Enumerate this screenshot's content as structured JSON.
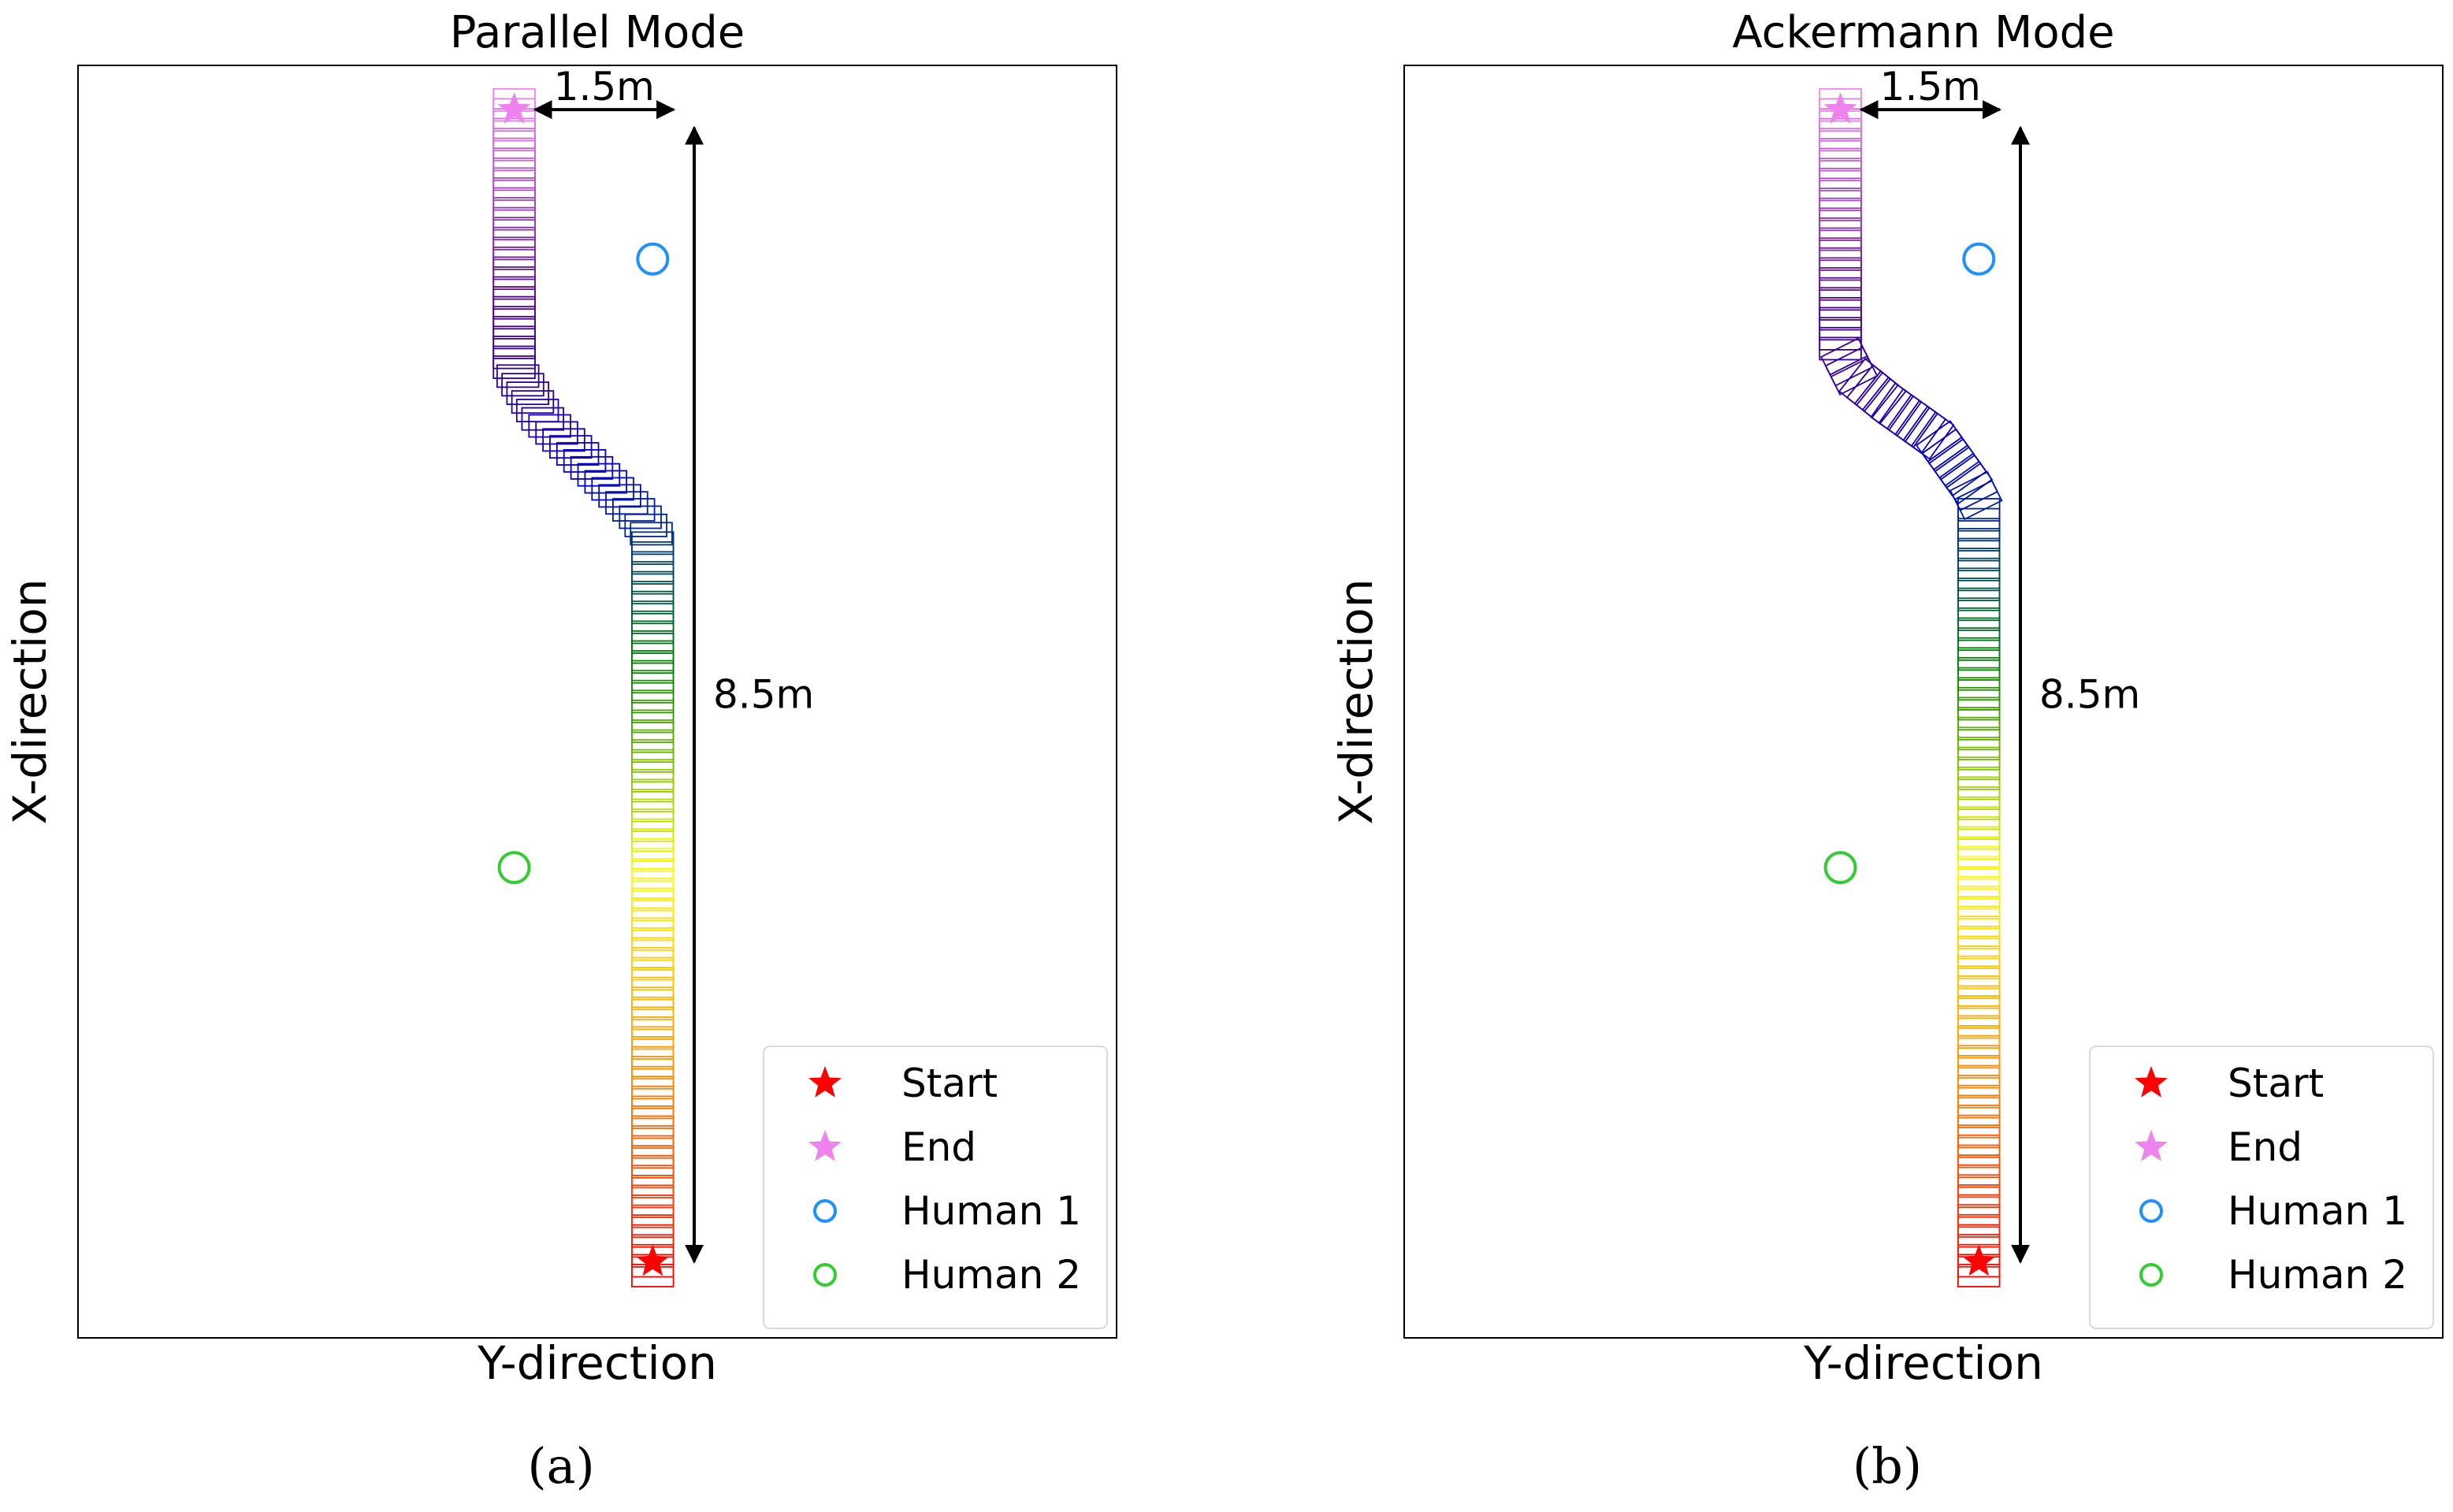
{
  "chart_data": [
    {
      "type": "scatter",
      "subfigure_label": "(a)",
      "title": "Parallel Mode",
      "xlabel": "Y-direction",
      "ylabel": "X-direction",
      "ticks_shown": false,
      "grid": false,
      "legend_position": "bottom-right",
      "xlim": [
        -3.5,
        4.0
      ],
      "ylim": [
        -0.2,
        9.0
      ],
      "annotations": [
        {
          "text": "1.5m",
          "from": [
            -0.2,
            8.68
          ],
          "to": [
            0.8,
            8.68
          ],
          "type": "double-arrow-horizontal"
        },
        {
          "text": "8.5m",
          "from": [
            0.95,
            8.55
          ],
          "to": [
            0.95,
            0.35
          ],
          "type": "double-arrow-vertical"
        }
      ],
      "series": [
        {
          "name": "Start",
          "marker": "star",
          "color": "#ff0000",
          "x": [
            0.65
          ],
          "y": [
            0.35
          ]
        },
        {
          "name": "End",
          "marker": "star",
          "color": "#ee82ee",
          "x": [
            -0.35
          ],
          "y": [
            8.68
          ]
        },
        {
          "name": "Human 1",
          "marker": "circle",
          "color": "#1e90ff",
          "x": [
            0.65
          ],
          "y": [
            7.6
          ]
        },
        {
          "name": "Human 2",
          "marker": "circle",
          "color": "#32cd32",
          "x": [
            -0.35
          ],
          "y": [
            3.2
          ]
        }
      ],
      "trajectory": {
        "path": [
          [
            0.65,
            0.25
          ],
          [
            0.65,
            5.6
          ],
          [
            0.55,
            5.75
          ],
          [
            -0.15,
            6.45
          ],
          [
            -0.35,
            6.8
          ],
          [
            -0.35,
            8.75
          ]
        ],
        "box_count": 125,
        "box_width_m": 0.3,
        "box_length_m": 0.1,
        "rotate_with_heading": false,
        "colormap": [
          "#ff0000",
          "#ff8c00",
          "#ffff00",
          "#008000",
          "#0000cd",
          "#4b0082",
          "#ee82ee"
        ]
      }
    },
    {
      "type": "scatter",
      "subfigure_label": "(b)",
      "title": "Ackermann Mode",
      "xlabel": "Y-direction",
      "ylabel": "X-direction",
      "ticks_shown": false,
      "grid": false,
      "legend_position": "bottom-right",
      "xlim": [
        -3.5,
        4.0
      ],
      "ylim": [
        -0.2,
        9.0
      ],
      "annotations": [
        {
          "text": "1.5m",
          "from": [
            -0.2,
            8.68
          ],
          "to": [
            0.8,
            8.68
          ],
          "type": "double-arrow-horizontal"
        },
        {
          "text": "8.5m",
          "from": [
            0.95,
            8.55
          ],
          "to": [
            0.95,
            0.35
          ],
          "type": "double-arrow-vertical"
        }
      ],
      "series": [
        {
          "name": "Start",
          "marker": "star",
          "color": "#ff0000",
          "x": [
            0.65
          ],
          "y": [
            0.35
          ]
        },
        {
          "name": "End",
          "marker": "star",
          "color": "#ee82ee",
          "x": [
            -0.35
          ],
          "y": [
            8.68
          ]
        },
        {
          "name": "Human 1",
          "marker": "circle",
          "color": "#1e90ff",
          "x": [
            0.65
          ],
          "y": [
            7.6
          ]
        },
        {
          "name": "Human 2",
          "marker": "circle",
          "color": "#32cd32",
          "x": [
            -0.35
          ],
          "y": [
            3.2
          ]
        }
      ],
      "trajectory": {
        "path": [
          [
            0.65,
            0.25
          ],
          [
            0.65,
            5.85
          ],
          [
            0.6,
            5.95
          ],
          [
            0.35,
            6.3
          ],
          [
            0.0,
            6.55
          ],
          [
            -0.25,
            6.75
          ],
          [
            -0.35,
            6.95
          ],
          [
            -0.35,
            8.75
          ]
        ],
        "box_count": 125,
        "box_width_m": 0.3,
        "box_length_m": 0.1,
        "rotate_with_heading": true,
        "colormap": [
          "#ff0000",
          "#ff8c00",
          "#ffff00",
          "#008000",
          "#0000cd",
          "#4b0082",
          "#ee82ee"
        ]
      }
    }
  ]
}
